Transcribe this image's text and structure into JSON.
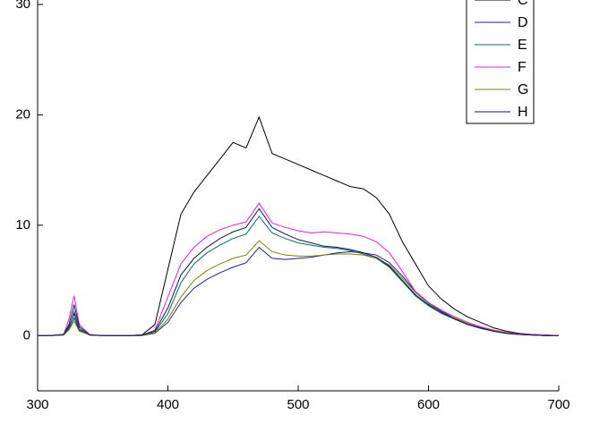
{
  "chart_data": {
    "type": "line",
    "x": [
      300,
      310,
      320,
      324,
      328,
      332,
      340,
      350,
      360,
      370,
      380,
      390,
      400,
      410,
      420,
      430,
      440,
      450,
      460,
      470,
      480,
      490,
      500,
      510,
      520,
      530,
      540,
      550,
      560,
      570,
      580,
      590,
      600,
      610,
      620,
      630,
      640,
      650,
      660,
      670,
      680,
      690,
      700
    ],
    "series": [
      {
        "name": "C",
        "color": "#000000",
        "values": [
          0,
          0,
          0.1,
          0.8,
          2.0,
          0.6,
          0.05,
          0,
          0,
          0,
          0.05,
          1,
          6,
          11,
          13,
          14.5,
          16,
          17.5,
          17,
          19.8,
          16.5,
          16,
          15.5,
          15,
          14.5,
          14,
          13.5,
          13.3,
          12.5,
          11,
          8.5,
          6.5,
          4.5,
          3.3,
          2.4,
          1.7,
          1.2,
          0.7,
          0.4,
          0.2,
          0.1,
          0.05,
          0
        ]
      },
      {
        "name": "D",
        "color": "#1c1c9a",
        "values": [
          0,
          0,
          0.05,
          0.6,
          1.6,
          0.5,
          0.05,
          0,
          0,
          0,
          0,
          0.2,
          1.2,
          3,
          4.3,
          5.1,
          5.7,
          6.2,
          6.6,
          8,
          7,
          6.9,
          7,
          7.1,
          7.3,
          7.5,
          7.6,
          7.5,
          7.3,
          6.6,
          5.4,
          4,
          3,
          2.2,
          1.6,
          1.1,
          0.7,
          0.45,
          0.25,
          0.1,
          0.05,
          0,
          0
        ]
      },
      {
        "name": "E",
        "color": "#006f6f",
        "values": [
          0,
          0,
          0.1,
          0.7,
          2.2,
          0.6,
          0.05,
          0,
          0,
          0,
          0,
          0.3,
          2,
          4.8,
          6.5,
          7.5,
          8.2,
          8.8,
          9.2,
          10.8,
          9.3,
          8.8,
          8.4,
          8.2,
          8,
          7.9,
          7.7,
          7.4,
          7,
          6.2,
          4.9,
          3.6,
          2.7,
          2,
          1.5,
          1,
          0.65,
          0.4,
          0.2,
          0.1,
          0.05,
          0,
          0
        ]
      },
      {
        "name": "F",
        "color": "#e020e0",
        "values": [
          0,
          0,
          0.1,
          1.5,
          3.6,
          1.0,
          0.1,
          0,
          0,
          0,
          0.05,
          0.5,
          3.5,
          6.5,
          8,
          9,
          9.6,
          10,
          10.3,
          12,
          10.2,
          9.8,
          9.5,
          9.3,
          9.4,
          9.3,
          9.2,
          9,
          8.5,
          7.5,
          5.8,
          4,
          3,
          2.3,
          1.7,
          1.2,
          0.8,
          0.5,
          0.3,
          0.15,
          0.1,
          0.05,
          0
        ]
      },
      {
        "name": "G",
        "color": "#808000",
        "values": [
          0,
          0,
          0.05,
          0.5,
          1.3,
          0.4,
          0.05,
          0,
          0,
          0,
          0,
          0.2,
          1.5,
          3.5,
          5,
          5.9,
          6.5,
          7,
          7.3,
          8.6,
          7.6,
          7.3,
          7.2,
          7.2,
          7.3,
          7.4,
          7.4,
          7.3,
          7,
          6.4,
          5.2,
          3.9,
          2.9,
          2.1,
          1.6,
          1.1,
          0.7,
          0.45,
          0.25,
          0.1,
          0.05,
          0,
          0
        ]
      },
      {
        "name": "H",
        "color": "#141450",
        "values": [
          0,
          0,
          0.1,
          1.0,
          2.8,
          0.8,
          0.05,
          0,
          0,
          0,
          0.05,
          0.4,
          2.5,
          5.5,
          7,
          8,
          8.8,
          9.4,
          9.8,
          11.5,
          9.8,
          9.2,
          8.7,
          8.4,
          8.1,
          8,
          7.8,
          7.5,
          7.1,
          6.3,
          5,
          3.7,
          2.8,
          2.1,
          1.5,
          1,
          0.7,
          0.4,
          0.2,
          0.1,
          0.05,
          0,
          0
        ]
      }
    ],
    "xlim": [
      300,
      700
    ],
    "ylim": [
      -5,
      30
    ],
    "xticks": [
      300,
      400,
      500,
      600,
      700
    ],
    "yticks": [
      0,
      10,
      20,
      30
    ],
    "legend": "top-right"
  }
}
